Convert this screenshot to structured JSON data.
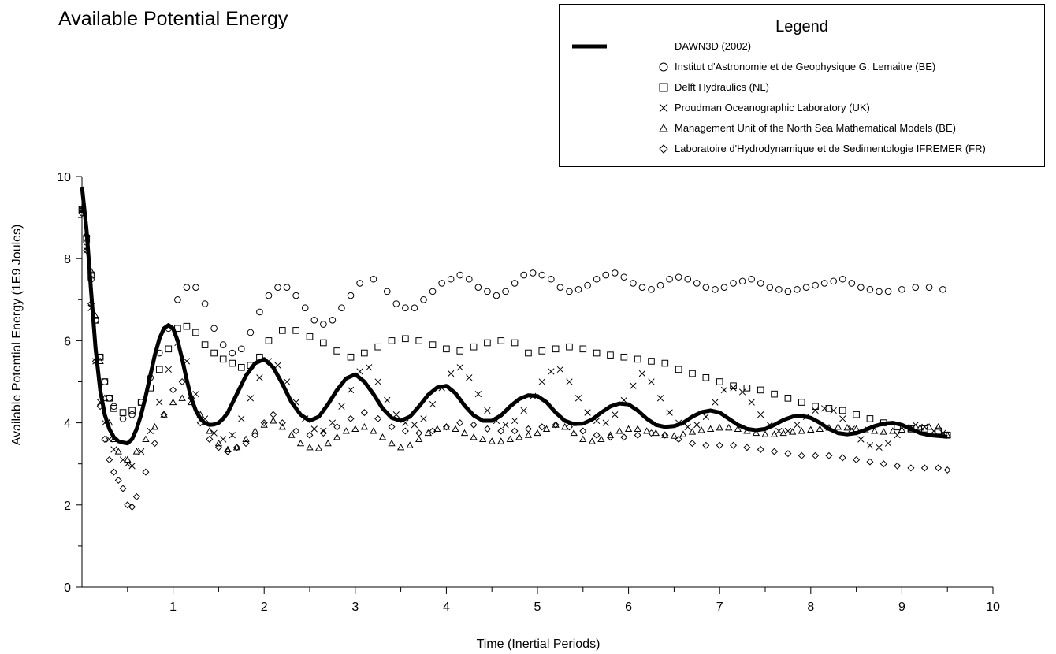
{
  "chart_data": {
    "type": "line",
    "title": "Available Potential Energy",
    "xlabel": "Time (Inertial Periods)",
    "ylabel": "Available Potential Energy (1E9 Joules)",
    "xlim": [
      0,
      10
    ],
    "ylim": [
      0,
      10
    ],
    "x_ticks": [
      "1",
      "2",
      "3",
      "4",
      "5",
      "6",
      "7",
      "8",
      "9",
      "10"
    ],
    "y_ticks": [
      "0",
      "2",
      "4",
      "6",
      "8",
      "10"
    ],
    "grid": false,
    "legend_title": "Legend",
    "legend_position": "top-right",
    "series": [
      {
        "name": "DAWN3D (2002)",
        "marker": "line",
        "color": "#000000",
        "x": [
          0.0,
          0.05,
          0.1,
          0.15,
          0.2,
          0.25,
          0.3,
          0.35,
          0.4,
          0.45,
          0.5,
          0.55,
          0.6,
          0.65,
          0.7,
          0.75,
          0.8,
          0.85,
          0.9,
          0.95,
          1.0,
          1.05,
          1.1,
          1.15,
          1.2,
          1.25,
          1.3,
          1.35,
          1.4,
          1.45,
          1.5,
          1.55,
          1.6,
          1.7,
          1.8,
          1.9,
          2.0,
          2.1,
          2.2,
          2.3,
          2.4,
          2.5,
          2.6,
          2.7,
          2.8,
          2.9,
          3.0,
          3.1,
          3.2,
          3.3,
          3.4,
          3.5,
          3.6,
          3.7,
          3.8,
          3.9,
          4.0,
          4.1,
          4.2,
          4.3,
          4.4,
          4.5,
          4.6,
          4.7,
          4.8,
          4.9,
          5.0,
          5.1,
          5.2,
          5.3,
          5.4,
          5.5,
          5.6,
          5.7,
          5.8,
          5.9,
          6.0,
          6.1,
          6.2,
          6.3,
          6.4,
          6.5,
          6.6,
          6.7,
          6.8,
          6.9,
          7.0,
          7.1,
          7.2,
          7.3,
          7.4,
          7.5,
          7.6,
          7.7,
          7.8,
          7.9,
          8.0,
          8.1,
          8.2,
          8.3,
          8.4,
          8.5,
          8.6,
          8.7,
          8.8,
          8.9,
          9.0,
          9.1,
          9.2,
          9.3,
          9.4,
          9.5
        ],
        "y": [
          9.75,
          8.7,
          7.2,
          5.8,
          4.8,
          4.2,
          3.85,
          3.65,
          3.55,
          3.52,
          3.5,
          3.6,
          3.85,
          4.2,
          4.65,
          5.15,
          5.65,
          6.05,
          6.3,
          6.38,
          6.3,
          6.0,
          5.55,
          5.05,
          4.6,
          4.3,
          4.1,
          3.99,
          3.95,
          3.96,
          4.0,
          4.1,
          4.25,
          4.7,
          5.15,
          5.45,
          5.55,
          5.35,
          4.95,
          4.5,
          4.2,
          4.05,
          4.15,
          4.45,
          4.8,
          5.08,
          5.18,
          5.0,
          4.7,
          4.35,
          4.12,
          4.05,
          4.15,
          4.4,
          4.68,
          4.86,
          4.9,
          4.72,
          4.42,
          4.18,
          4.05,
          4.05,
          4.18,
          4.4,
          4.58,
          4.67,
          4.65,
          4.5,
          4.25,
          4.05,
          3.97,
          3.98,
          4.08,
          4.25,
          4.4,
          4.47,
          4.45,
          4.3,
          4.1,
          3.95,
          3.9,
          3.92,
          4.0,
          4.15,
          4.26,
          4.3,
          4.25,
          4.1,
          3.95,
          3.85,
          3.82,
          3.85,
          3.95,
          4.07,
          4.15,
          4.17,
          4.12,
          4.0,
          3.85,
          3.75,
          3.72,
          3.75,
          3.83,
          3.92,
          3.98,
          4.0,
          3.95,
          3.85,
          3.75,
          3.7,
          3.68,
          3.66
        ]
      },
      {
        "name": "Institut d'Astronomie et de Geophysique G. Lemaitre (BE)",
        "marker": "circle",
        "x": [
          0.0,
          0.05,
          0.1,
          0.15,
          0.2,
          0.25,
          0.3,
          0.35,
          0.45,
          0.55,
          0.65,
          0.75,
          0.85,
          0.95,
          1.05,
          1.15,
          1.25,
          1.35,
          1.45,
          1.55,
          1.65,
          1.75,
          1.85,
          1.95,
          2.05,
          2.15,
          2.25,
          2.35,
          2.45,
          2.55,
          2.65,
          2.75,
          2.85,
          2.95,
          3.05,
          3.2,
          3.35,
          3.45,
          3.55,
          3.65,
          3.75,
          3.85,
          3.95,
          4.05,
          4.15,
          4.25,
          4.35,
          4.45,
          4.55,
          4.65,
          4.75,
          4.85,
          4.95,
          5.05,
          5.15,
          5.25,
          5.35,
          5.45,
          5.55,
          5.65,
          5.75,
          5.85,
          5.95,
          6.05,
          6.15,
          6.25,
          6.35,
          6.45,
          6.55,
          6.65,
          6.75,
          6.85,
          6.95,
          7.05,
          7.15,
          7.25,
          7.35,
          7.45,
          7.55,
          7.65,
          7.75,
          7.85,
          7.95,
          8.05,
          8.15,
          8.25,
          8.35,
          8.45,
          8.55,
          8.65,
          8.75,
          8.85,
          9.0,
          9.15,
          9.3,
          9.45
        ],
        "y": [
          9.2,
          8.4,
          7.5,
          6.5,
          5.6,
          5.0,
          4.6,
          4.4,
          4.1,
          4.2,
          4.5,
          5.1,
          5.7,
          6.3,
          7.0,
          7.3,
          7.3,
          6.9,
          6.3,
          5.9,
          5.7,
          5.8,
          6.2,
          6.7,
          7.1,
          7.3,
          7.3,
          7.1,
          6.8,
          6.5,
          6.4,
          6.5,
          6.8,
          7.1,
          7.4,
          7.5,
          7.2,
          6.9,
          6.8,
          6.8,
          7.0,
          7.2,
          7.4,
          7.5,
          7.6,
          7.5,
          7.3,
          7.2,
          7.1,
          7.2,
          7.4,
          7.6,
          7.65,
          7.6,
          7.5,
          7.3,
          7.2,
          7.25,
          7.35,
          7.5,
          7.6,
          7.65,
          7.55,
          7.4,
          7.3,
          7.25,
          7.35,
          7.5,
          7.55,
          7.5,
          7.4,
          7.3,
          7.25,
          7.3,
          7.4,
          7.45,
          7.5,
          7.4,
          7.3,
          7.25,
          7.2,
          7.25,
          7.3,
          7.35,
          7.4,
          7.45,
          7.5,
          7.4,
          7.3,
          7.25,
          7.2,
          7.2,
          7.25,
          7.3,
          7.3,
          7.25
        ]
      },
      {
        "name": "Delft Hydraulics (NL)",
        "marker": "square",
        "x": [
          0.0,
          0.05,
          0.1,
          0.15,
          0.2,
          0.25,
          0.3,
          0.35,
          0.45,
          0.55,
          0.65,
          0.75,
          0.85,
          0.95,
          1.05,
          1.15,
          1.25,
          1.35,
          1.45,
          1.55,
          1.65,
          1.75,
          1.85,
          1.95,
          2.05,
          2.2,
          2.35,
          2.5,
          2.65,
          2.8,
          2.95,
          3.1,
          3.25,
          3.4,
          3.55,
          3.7,
          3.85,
          4.0,
          4.15,
          4.3,
          4.45,
          4.6,
          4.75,
          4.9,
          5.05,
          5.2,
          5.35,
          5.5,
          5.65,
          5.8,
          5.95,
          6.1,
          6.25,
          6.4,
          6.55,
          6.7,
          6.85,
          7.0,
          7.15,
          7.3,
          7.45,
          7.6,
          7.75,
          7.9,
          8.05,
          8.2,
          8.35,
          8.5,
          8.65,
          8.8,
          8.95,
          9.1,
          9.25,
          9.4,
          9.5
        ],
        "y": [
          9.2,
          8.5,
          7.6,
          6.5,
          5.6,
          5.0,
          4.6,
          4.35,
          4.25,
          4.3,
          4.5,
          4.85,
          5.3,
          5.8,
          6.3,
          6.35,
          6.2,
          5.9,
          5.7,
          5.55,
          5.45,
          5.35,
          5.4,
          5.6,
          6.0,
          6.25,
          6.25,
          6.1,
          5.95,
          5.75,
          5.6,
          5.7,
          5.85,
          6.0,
          6.05,
          6.0,
          5.9,
          5.8,
          5.75,
          5.85,
          5.95,
          6.0,
          5.95,
          5.7,
          5.75,
          5.8,
          5.85,
          5.8,
          5.7,
          5.65,
          5.6,
          5.55,
          5.5,
          5.45,
          5.3,
          5.2,
          5.1,
          5.0,
          4.9,
          4.85,
          4.8,
          4.7,
          4.6,
          4.5,
          4.4,
          4.35,
          4.3,
          4.2,
          4.1,
          4.0,
          3.9,
          3.85,
          3.85,
          3.8,
          3.7
        ]
      },
      {
        "name": "Proudman Oceanographic Laboratory (UK)",
        "marker": "x",
        "x": [
          0.0,
          0.05,
          0.1,
          0.15,
          0.2,
          0.25,
          0.3,
          0.35,
          0.45,
          0.5,
          0.55,
          0.65,
          0.75,
          0.85,
          0.95,
          1.05,
          1.15,
          1.25,
          1.35,
          1.45,
          1.55,
          1.65,
          1.75,
          1.85,
          1.95,
          2.05,
          2.15,
          2.25,
          2.35,
          2.45,
          2.55,
          2.65,
          2.75,
          2.85,
          2.95,
          3.05,
          3.15,
          3.25,
          3.35,
          3.45,
          3.55,
          3.65,
          3.75,
          3.85,
          3.95,
          4.05,
          4.15,
          4.25,
          4.35,
          4.45,
          4.55,
          4.65,
          4.75,
          4.85,
          4.95,
          5.05,
          5.15,
          5.25,
          5.35,
          5.45,
          5.55,
          5.65,
          5.75,
          5.85,
          5.95,
          6.05,
          6.15,
          6.25,
          6.35,
          6.45,
          6.55,
          6.65,
          6.75,
          6.85,
          6.95,
          7.05,
          7.15,
          7.25,
          7.35,
          7.45,
          7.55,
          7.65,
          7.75,
          7.85,
          7.95,
          8.05,
          8.15,
          8.25,
          8.35,
          8.45,
          8.55,
          8.65,
          8.75,
          8.85,
          8.95,
          9.05,
          9.15,
          9.25,
          9.35,
          9.45
        ],
        "y": [
          9.2,
          8.2,
          6.8,
          5.5,
          4.5,
          4.0,
          3.6,
          3.35,
          3.1,
          3.0,
          2.95,
          3.3,
          3.8,
          4.5,
          5.3,
          5.95,
          5.5,
          4.7,
          4.1,
          3.75,
          3.6,
          3.7,
          4.1,
          4.6,
          5.1,
          5.5,
          5.4,
          5.0,
          4.5,
          4.1,
          3.85,
          3.8,
          4.0,
          4.4,
          4.8,
          5.25,
          5.35,
          5.0,
          4.55,
          4.2,
          4.0,
          3.95,
          4.1,
          4.45,
          4.85,
          5.2,
          5.35,
          5.1,
          4.7,
          4.3,
          4.05,
          3.95,
          4.05,
          4.3,
          4.65,
          5.0,
          5.25,
          5.3,
          5.0,
          4.6,
          4.25,
          4.05,
          4.0,
          4.2,
          4.55,
          4.9,
          5.2,
          5.0,
          4.6,
          4.25,
          4.0,
          3.9,
          3.95,
          4.15,
          4.5,
          4.8,
          4.85,
          4.75,
          4.5,
          4.2,
          3.95,
          3.8,
          3.8,
          3.95,
          4.15,
          4.3,
          4.35,
          4.3,
          4.1,
          3.85,
          3.6,
          3.45,
          3.4,
          3.5,
          3.7,
          3.9,
          3.95,
          3.9,
          3.8,
          3.75
        ]
      },
      {
        "name": "Management Unit of the North Sea Mathematical Models (BE)",
        "marker": "triangle",
        "x": [
          0.0,
          0.05,
          0.1,
          0.15,
          0.2,
          0.25,
          0.3,
          0.35,
          0.4,
          0.5,
          0.6,
          0.7,
          0.8,
          0.9,
          1.0,
          1.1,
          1.2,
          1.3,
          1.4,
          1.5,
          1.6,
          1.7,
          1.8,
          1.9,
          2.0,
          2.1,
          2.2,
          2.3,
          2.4,
          2.5,
          2.6,
          2.7,
          2.8,
          2.9,
          3.0,
          3.1,
          3.2,
          3.3,
          3.4,
          3.5,
          3.6,
          3.7,
          3.8,
          3.9,
          4.0,
          4.1,
          4.2,
          4.3,
          4.4,
          4.5,
          4.6,
          4.7,
          4.8,
          4.9,
          5.0,
          5.1,
          5.2,
          5.3,
          5.4,
          5.5,
          5.6,
          5.7,
          5.8,
          5.9,
          6.0,
          6.1,
          6.2,
          6.3,
          6.4,
          6.5,
          6.6,
          6.7,
          6.8,
          6.9,
          7.0,
          7.1,
          7.2,
          7.3,
          7.4,
          7.5,
          7.6,
          7.7,
          7.8,
          7.9,
          8.0,
          8.1,
          8.2,
          8.3,
          8.4,
          8.5,
          8.6,
          8.7,
          8.8,
          8.9,
          9.0,
          9.1,
          9.2,
          9.3,
          9.4,
          9.5
        ],
        "y": [
          9.2,
          8.6,
          7.7,
          6.6,
          5.5,
          4.6,
          4.0,
          3.6,
          3.3,
          3.1,
          3.3,
          3.6,
          3.9,
          4.2,
          4.5,
          4.6,
          4.5,
          4.2,
          3.8,
          3.5,
          3.35,
          3.4,
          3.6,
          3.8,
          3.95,
          4.05,
          3.9,
          3.7,
          3.5,
          3.4,
          3.38,
          3.5,
          3.65,
          3.8,
          3.85,
          3.9,
          3.8,
          3.65,
          3.5,
          3.4,
          3.45,
          3.6,
          3.75,
          3.85,
          3.9,
          3.85,
          3.75,
          3.65,
          3.6,
          3.55,
          3.55,
          3.6,
          3.65,
          3.7,
          3.75,
          3.85,
          3.95,
          3.9,
          3.75,
          3.6,
          3.55,
          3.6,
          3.7,
          3.8,
          3.85,
          3.85,
          3.8,
          3.75,
          3.7,
          3.68,
          3.72,
          3.78,
          3.82,
          3.85,
          3.88,
          3.88,
          3.85,
          3.8,
          3.75,
          3.72,
          3.72,
          3.75,
          3.78,
          3.8,
          3.83,
          3.85,
          3.88,
          3.9,
          3.88,
          3.85,
          3.82,
          3.8,
          3.78,
          3.8,
          3.83,
          3.86,
          3.88,
          3.9,
          3.9,
          3.7
        ]
      },
      {
        "name": "Laboratoire d'Hydrodynamique et de Sedimentologie IFREMER (FR)",
        "marker": "diamond",
        "x": [
          0.0,
          0.05,
          0.1,
          0.15,
          0.2,
          0.25,
          0.3,
          0.35,
          0.4,
          0.45,
          0.5,
          0.55,
          0.6,
          0.7,
          0.8,
          0.9,
          1.0,
          1.1,
          1.2,
          1.3,
          1.4,
          1.5,
          1.6,
          1.7,
          1.8,
          1.9,
          2.0,
          2.1,
          2.2,
          2.35,
          2.5,
          2.65,
          2.8,
          2.95,
          3.1,
          3.25,
          3.4,
          3.55,
          3.7,
          3.85,
          4.0,
          4.15,
          4.3,
          4.45,
          4.6,
          4.75,
          4.9,
          5.05,
          5.2,
          5.35,
          5.5,
          5.65,
          5.8,
          5.95,
          6.1,
          6.25,
          6.4,
          6.55,
          6.7,
          6.85,
          7.0,
          7.15,
          7.3,
          7.45,
          7.6,
          7.75,
          7.9,
          8.05,
          8.2,
          8.35,
          8.5,
          8.65,
          8.8,
          8.95,
          9.1,
          9.25,
          9.4,
          9.5
        ],
        "y": [
          9.1,
          8.2,
          6.9,
          5.5,
          4.4,
          3.6,
          3.1,
          2.8,
          2.6,
          2.4,
          2.0,
          1.95,
          2.2,
          2.8,
          3.5,
          4.2,
          4.8,
          5.0,
          4.6,
          4.0,
          3.6,
          3.4,
          3.3,
          3.4,
          3.5,
          3.7,
          4.0,
          4.2,
          4.0,
          3.8,
          3.7,
          3.75,
          3.9,
          4.1,
          4.25,
          4.1,
          3.9,
          3.8,
          3.75,
          3.8,
          3.9,
          4.0,
          3.95,
          3.85,
          3.8,
          3.8,
          3.85,
          3.9,
          3.95,
          3.9,
          3.8,
          3.7,
          3.65,
          3.65,
          3.7,
          3.75,
          3.7,
          3.6,
          3.5,
          3.45,
          3.45,
          3.45,
          3.4,
          3.35,
          3.3,
          3.25,
          3.2,
          3.2,
          3.2,
          3.15,
          3.1,
          3.05,
          3.0,
          2.95,
          2.9,
          2.9,
          2.9,
          2.85
        ]
      }
    ]
  }
}
